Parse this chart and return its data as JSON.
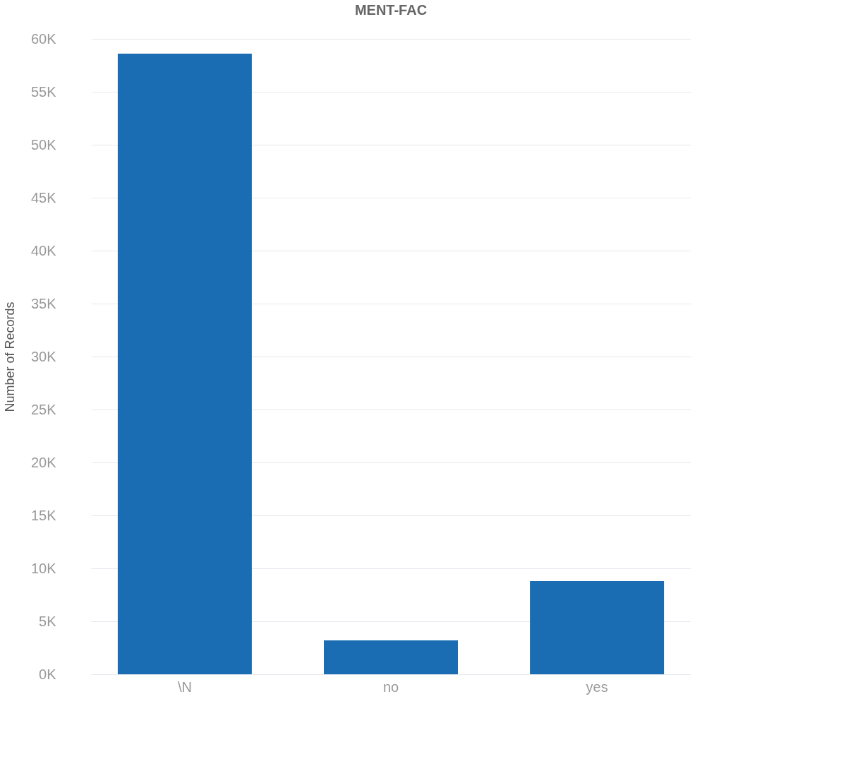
{
  "chart_data": {
    "type": "bar",
    "title": "MENT-FAC",
    "ylabel": "Number of Records",
    "categories": [
      "\\N",
      "no",
      "yes"
    ],
    "values": [
      58600,
      3200,
      8800
    ],
    "color": "#1a6db3",
    "ylim": [
      0,
      60000
    ],
    "yticks": [
      {
        "value": 0,
        "label": "0K"
      },
      {
        "value": 5000,
        "label": "5K"
      },
      {
        "value": 10000,
        "label": "10K"
      },
      {
        "value": 15000,
        "label": "15K"
      },
      {
        "value": 20000,
        "label": "20K"
      },
      {
        "value": 25000,
        "label": "25K"
      },
      {
        "value": 30000,
        "label": "30K"
      },
      {
        "value": 35000,
        "label": "35K"
      },
      {
        "value": 40000,
        "label": "40K"
      },
      {
        "value": 45000,
        "label": "45K"
      },
      {
        "value": 50000,
        "label": "50K"
      },
      {
        "value": 55000,
        "label": "55K"
      },
      {
        "value": 60000,
        "label": "60K"
      }
    ],
    "grid": "y"
  }
}
